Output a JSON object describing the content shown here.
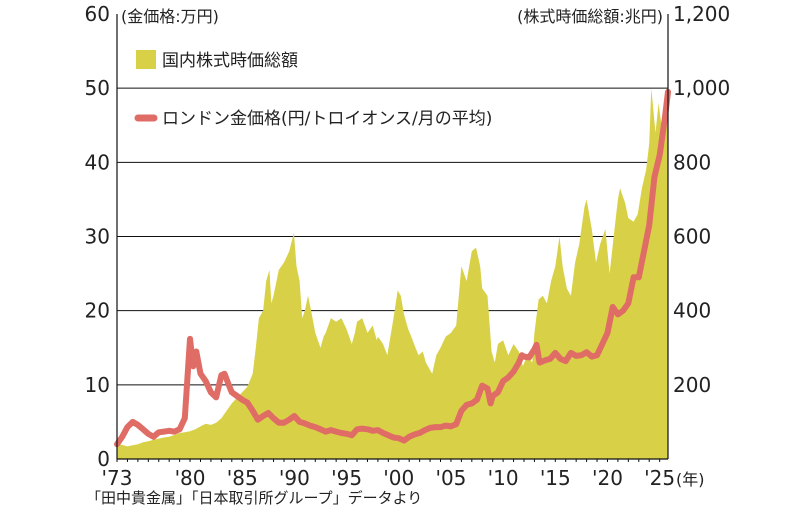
{
  "chart_data": {
    "type": "area+line",
    "left_axis": {
      "unit_label": "(金価格:万円)",
      "ticks": [
        "0",
        "10",
        "20",
        "30",
        "40",
        "50",
        "60"
      ],
      "range": [
        0,
        60
      ]
    },
    "right_axis": {
      "unit_label": "(株式時価総額:兆円)",
      "ticks": [
        "200",
        "400",
        "600",
        "800",
        "1,000",
        "1,200"
      ],
      "range": [
        0,
        1200
      ]
    },
    "x_axis": {
      "ticks": [
        "'73",
        "'80",
        "'85",
        "'90",
        "'95",
        "'00",
        "'05",
        "'10",
        "'15",
        "'20",
        "'25"
      ],
      "tick_years": [
        1973,
        1980,
        1985,
        1990,
        1995,
        2000,
        2005,
        2010,
        2015,
        2020,
        2025
      ],
      "unit_label": "(年)",
      "range": [
        1973,
        2025.8
      ]
    },
    "grid": "horizontal",
    "legend_placement": "top-left",
    "source_note": "「田中貴金属」「日本取引所グループ」データより",
    "series": [
      {
        "name": "国内株式時価総額",
        "type": "area",
        "axis": "right",
        "color": "#d8d147",
        "x": [
          1973.0,
          1973.5,
          1974.0,
          1974.5,
          1975.0,
          1975.5,
          1976.0,
          1976.5,
          1977.0,
          1977.5,
          1978.0,
          1978.5,
          1979.0,
          1979.5,
          1980.0,
          1980.5,
          1981.0,
          1981.5,
          1982.0,
          1982.5,
          1983.0,
          1983.5,
          1984.0,
          1984.5,
          1985.0,
          1985.5,
          1986.0,
          1986.3,
          1986.6,
          1987.0,
          1987.3,
          1987.6,
          1987.8,
          1988.0,
          1988.5,
          1989.0,
          1989.5,
          1989.95,
          1990.2,
          1990.5,
          1990.75,
          1991.0,
          1991.3,
          1991.6,
          1992.0,
          1992.5,
          1992.8,
          1993.0,
          1993.5,
          1994.0,
          1994.5,
          1995.0,
          1995.5,
          1995.8,
          1996.0,
          1996.5,
          1997.0,
          1997.5,
          1997.9,
          1998.0,
          1998.5,
          1998.9,
          1999.2,
          1999.5,
          1999.9,
          2000.2,
          2000.5,
          2000.9,
          2001.2,
          2001.6,
          2001.9,
          2002.3,
          2002.6,
          2003.2,
          2003.6,
          2004.0,
          2004.5,
          2005.0,
          2005.5,
          2006.0,
          2006.5,
          2007.0,
          2007.4,
          2007.8,
          2008.0,
          2008.5,
          2008.9,
          2009.2,
          2009.5,
          2010.0,
          2010.5,
          2011.0,
          2011.5,
          2011.9,
          2012.3,
          2012.8,
          2013.0,
          2013.4,
          2013.8,
          2014.2,
          2014.6,
          2015.0,
          2015.4,
          2015.7,
          2016.1,
          2016.5,
          2016.9,
          2017.3,
          2017.8,
          2018.0,
          2018.5,
          2018.9,
          2019.3,
          2019.8,
          2020.2,
          2020.6,
          2021.0,
          2021.2,
          2021.7,
          2022.0,
          2022.5,
          2022.9,
          2023.3,
          2023.7,
          2024.0,
          2024.2,
          2024.6,
          2024.9,
          2025.3,
          2025.8
        ],
        "values": [
          40,
          38,
          34,
          37,
          40,
          45,
          48,
          52,
          55,
          58,
          60,
          65,
          70,
          72,
          75,
          80,
          88,
          95,
          92,
          98,
          110,
          130,
          150,
          165,
          180,
          195,
          230,
          300,
          380,
          400,
          480,
          510,
          420,
          440,
          510,
          530,
          560,
          610,
          520,
          480,
          380,
          400,
          440,
          400,
          340,
          300,
          330,
          340,
          380,
          370,
          380,
          350,
          310,
          340,
          370,
          380,
          340,
          360,
          320,
          330,
          310,
          280,
          330,
          380,
          455,
          440,
          390,
          350,
          330,
          300,
          280,
          290,
          260,
          230,
          280,
          300,
          330,
          340,
          360,
          520,
          480,
          560,
          570,
          520,
          460,
          440,
          290,
          260,
          310,
          320,
          280,
          310,
          290,
          250,
          280,
          260,
          340,
          430,
          440,
          420,
          480,
          520,
          600,
          520,
          460,
          440,
          530,
          580,
          680,
          700,
          620,
          530,
          580,
          620,
          500,
          600,
          700,
          730,
          690,
          650,
          640,
          660,
          730,
          780,
          850,
          1000,
          880,
          960,
          870,
          1010
        ]
      },
      {
        "name": "ロンドン金価格(円/トロイオンス/月の平均)",
        "type": "line",
        "axis": "left",
        "color": "#e06c66",
        "x": [
          1973.0,
          1973.5,
          1974.0,
          1974.5,
          1975.0,
          1975.5,
          1976.0,
          1976.5,
          1977.0,
          1977.5,
          1978.0,
          1978.5,
          1979.0,
          1979.5,
          1980.0,
          1980.3,
          1980.6,
          1981.0,
          1981.5,
          1982.0,
          1982.5,
          1983.0,
          1983.3,
          1983.7,
          1984.0,
          1984.5,
          1985.0,
          1985.5,
          1986.0,
          1986.5,
          1987.0,
          1987.5,
          1988.0,
          1988.5,
          1989.0,
          1989.5,
          1990.0,
          1990.5,
          1991.0,
          1991.5,
          1992.0,
          1992.5,
          1993.0,
          1993.5,
          1994.0,
          1994.5,
          1995.0,
          1995.5,
          1996.0,
          1996.5,
          1997.0,
          1997.5,
          1998.0,
          1998.5,
          1999.0,
          1999.5,
          2000.0,
          2000.5,
          2001.0,
          2001.5,
          2002.0,
          2002.5,
          2003.0,
          2003.5,
          2004.0,
          2004.5,
          2005.0,
          2005.5,
          2006.0,
          2006.5,
          2007.0,
          2007.5,
          2008.0,
          2008.5,
          2008.8,
          2009.0,
          2009.5,
          2010.0,
          2010.5,
          2011.0,
          2011.5,
          2011.8,
          2012.0,
          2012.5,
          2013.0,
          2013.2,
          2013.5,
          2014.0,
          2014.5,
          2015.0,
          2015.5,
          2016.0,
          2016.5,
          2017.0,
          2017.5,
          2018.0,
          2018.5,
          2019.0,
          2019.5,
          2020.0,
          2020.5,
          2021.0,
          2021.5,
          2022.0,
          2022.5,
          2023.0,
          2023.5,
          2024.0,
          2024.5,
          2025.0,
          2025.5,
          2025.8
        ],
        "values": [
          2.0,
          3.0,
          4.3,
          5.0,
          4.6,
          4.0,
          3.4,
          3.0,
          3.6,
          3.7,
          3.8,
          3.7,
          4.0,
          5.5,
          16.2,
          12.5,
          14.5,
          11.5,
          10.5,
          9.0,
          8.3,
          11.3,
          11.5,
          10.0,
          9.0,
          8.5,
          8.0,
          7.6,
          6.5,
          5.3,
          5.8,
          6.2,
          5.5,
          4.9,
          4.9,
          5.3,
          5.8,
          5.0,
          4.8,
          4.5,
          4.3,
          4.0,
          3.7,
          3.9,
          3.7,
          3.5,
          3.4,
          3.2,
          4.0,
          4.1,
          4.0,
          3.8,
          3.9,
          3.5,
          3.2,
          2.9,
          2.8,
          2.5,
          3.0,
          3.3,
          3.5,
          3.9,
          4.2,
          4.3,
          4.3,
          4.5,
          4.4,
          4.7,
          6.5,
          7.3,
          7.5,
          8.0,
          9.9,
          9.5,
          7.5,
          8.5,
          9.0,
          10.5,
          11.0,
          11.8,
          13.0,
          14.0,
          13.8,
          13.7,
          14.8,
          15.4,
          13.0,
          13.3,
          13.5,
          14.3,
          13.5,
          13.2,
          14.3,
          13.9,
          14.0,
          14.4,
          13.8,
          14.0,
          15.5,
          17.0,
          20.5,
          19.5,
          20.0,
          21.0,
          24.5,
          24.5,
          28.0,
          31.5,
          38.0,
          41.0,
          46.0,
          49.5
        ]
      }
    ]
  }
}
